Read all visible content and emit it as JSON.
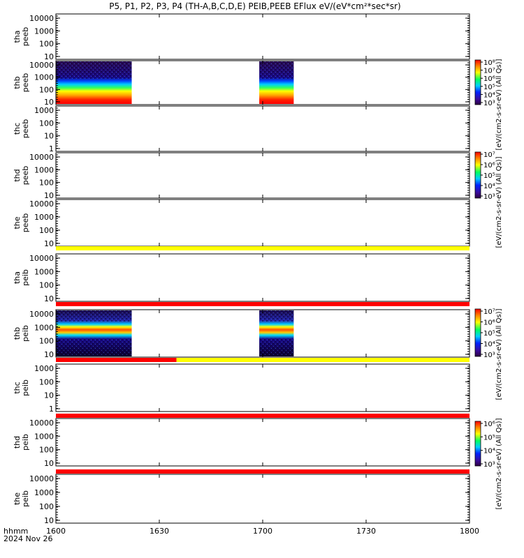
{
  "title": "P5, P1, P2, P3, P4 (TH-A,B,C,D,E) PEIB,PEEB EFlux eV/(eV*cm²*sec*sr)",
  "chart_data": {
    "type": "heatmap",
    "title": "P5, P1, P2, P3, P4 (TH-A,B,C,D,E) PEIB,PEEB EFlux eV/(eV*cm²*sec*sr)",
    "x_axis": {
      "label_line1": "hhmm",
      "label_line2": "2024 Nov 26",
      "range": [
        "1600",
        "1800"
      ],
      "tick_labels": [
        "1600",
        "1630",
        "1700",
        "1730",
        "1800"
      ]
    },
    "panels": [
      {
        "id": "tha-peeb",
        "ylabel1": "tha",
        "ylabel2": "peeb",
        "yticks": [
          "10000",
          "1000",
          "100",
          "10"
        ],
        "bursts": []
      },
      {
        "id": "thb-peeb",
        "ylabel1": "thb",
        "ylabel2": "peeb",
        "yticks": [
          "10000",
          "1000",
          "100",
          "10"
        ],
        "bursts": [
          {
            "start": "1600",
            "end": "1622"
          },
          {
            "start": "1659",
            "end": "1709"
          }
        ]
      },
      {
        "id": "thc-peeb",
        "ylabel1": "thc",
        "ylabel2": "peeb",
        "yticks": [
          "1000",
          "100",
          "10",
          "1"
        ],
        "bursts": []
      },
      {
        "id": "thd-peeb",
        "ylabel1": "thd",
        "ylabel2": "peeb",
        "yticks": [
          "10000",
          "1000",
          "100",
          "10"
        ],
        "bursts": []
      },
      {
        "id": "the-peeb",
        "ylabel1": "the",
        "ylabel2": "peeb",
        "yticks": [
          "10000",
          "1000",
          "100",
          "10"
        ],
        "bursts": []
      },
      {
        "id": "tha-peib",
        "ylabel1": "tha",
        "ylabel2": "peib",
        "yticks": [
          "10000",
          "1000",
          "100",
          "10"
        ],
        "bursts": []
      },
      {
        "id": "thb-peib",
        "ylabel1": "thb",
        "ylabel2": "peib",
        "yticks": [
          "10000",
          "1000",
          "100",
          "10"
        ],
        "bursts": [
          {
            "start": "1600",
            "end": "1622"
          },
          {
            "start": "1659",
            "end": "1709"
          }
        ]
      },
      {
        "id": "thc-peib",
        "ylabel1": "thc",
        "ylabel2": "peib",
        "yticks": [
          "1000",
          "100",
          "10",
          "1"
        ],
        "bursts": []
      },
      {
        "id": "thd-peib",
        "ylabel1": "thd",
        "ylabel2": "peib",
        "yticks": [
          "10000",
          "1000",
          "100",
          "10"
        ],
        "bursts": []
      },
      {
        "id": "the-peib",
        "ylabel1": "the",
        "ylabel2": "peib",
        "yticks": [
          "10000",
          "1000",
          "100",
          "10"
        ],
        "bursts": []
      }
    ],
    "status_bars": [
      {
        "after_panel": "the-peeb",
        "segments": [
          {
            "from": "1600",
            "to": "1800",
            "color": "#ffff00"
          }
        ]
      },
      {
        "after_panel": "tha-peib",
        "segments": [
          {
            "from": "1600",
            "to": "1800",
            "color": "#ff0000"
          }
        ]
      },
      {
        "after_panel": "thb-peib",
        "segments": [
          {
            "from": "1600",
            "to": "1635",
            "color": "#ff0000"
          },
          {
            "from": "1635",
            "to": "1800",
            "color": "#ffff00"
          }
        ]
      },
      {
        "after_panel": "thc-peib",
        "segments": [
          {
            "from": "1600",
            "to": "1800",
            "color": "#ff0000"
          }
        ]
      },
      {
        "after_panel": "thd-peib",
        "segments": [
          {
            "from": "1600",
            "to": "1800",
            "color": "#ff0000"
          }
        ]
      }
    ],
    "colorbars": [
      {
        "label": "[eV/(cm2-s-sr-eV) (All Qs)]",
        "tick_labels": [
          "10⁸",
          "10⁷",
          "10⁶",
          "10⁵",
          "10⁴",
          "10³"
        ]
      },
      {
        "label": "[eV/(cm2-s-sr-eV) (All Qs)]",
        "tick_labels": [
          "10⁷",
          "10⁶",
          "10⁵",
          "10⁴",
          "10³"
        ]
      },
      {
        "label": "[eV/(cm2-s-sr-eV) (All Qs)]",
        "tick_labels": [
          "10⁷",
          "10⁶",
          "10⁵",
          "10⁴",
          "10³"
        ]
      },
      {
        "label": "[eV/(cm2-s-sr-eV) (All Qs)]",
        "tick_labels": [
          "10⁶",
          "10⁵",
          "10⁴",
          "10³"
        ]
      }
    ],
    "grid": false,
    "colormap": "rainbow (purple-blue-cyan-green-yellow-red)"
  }
}
